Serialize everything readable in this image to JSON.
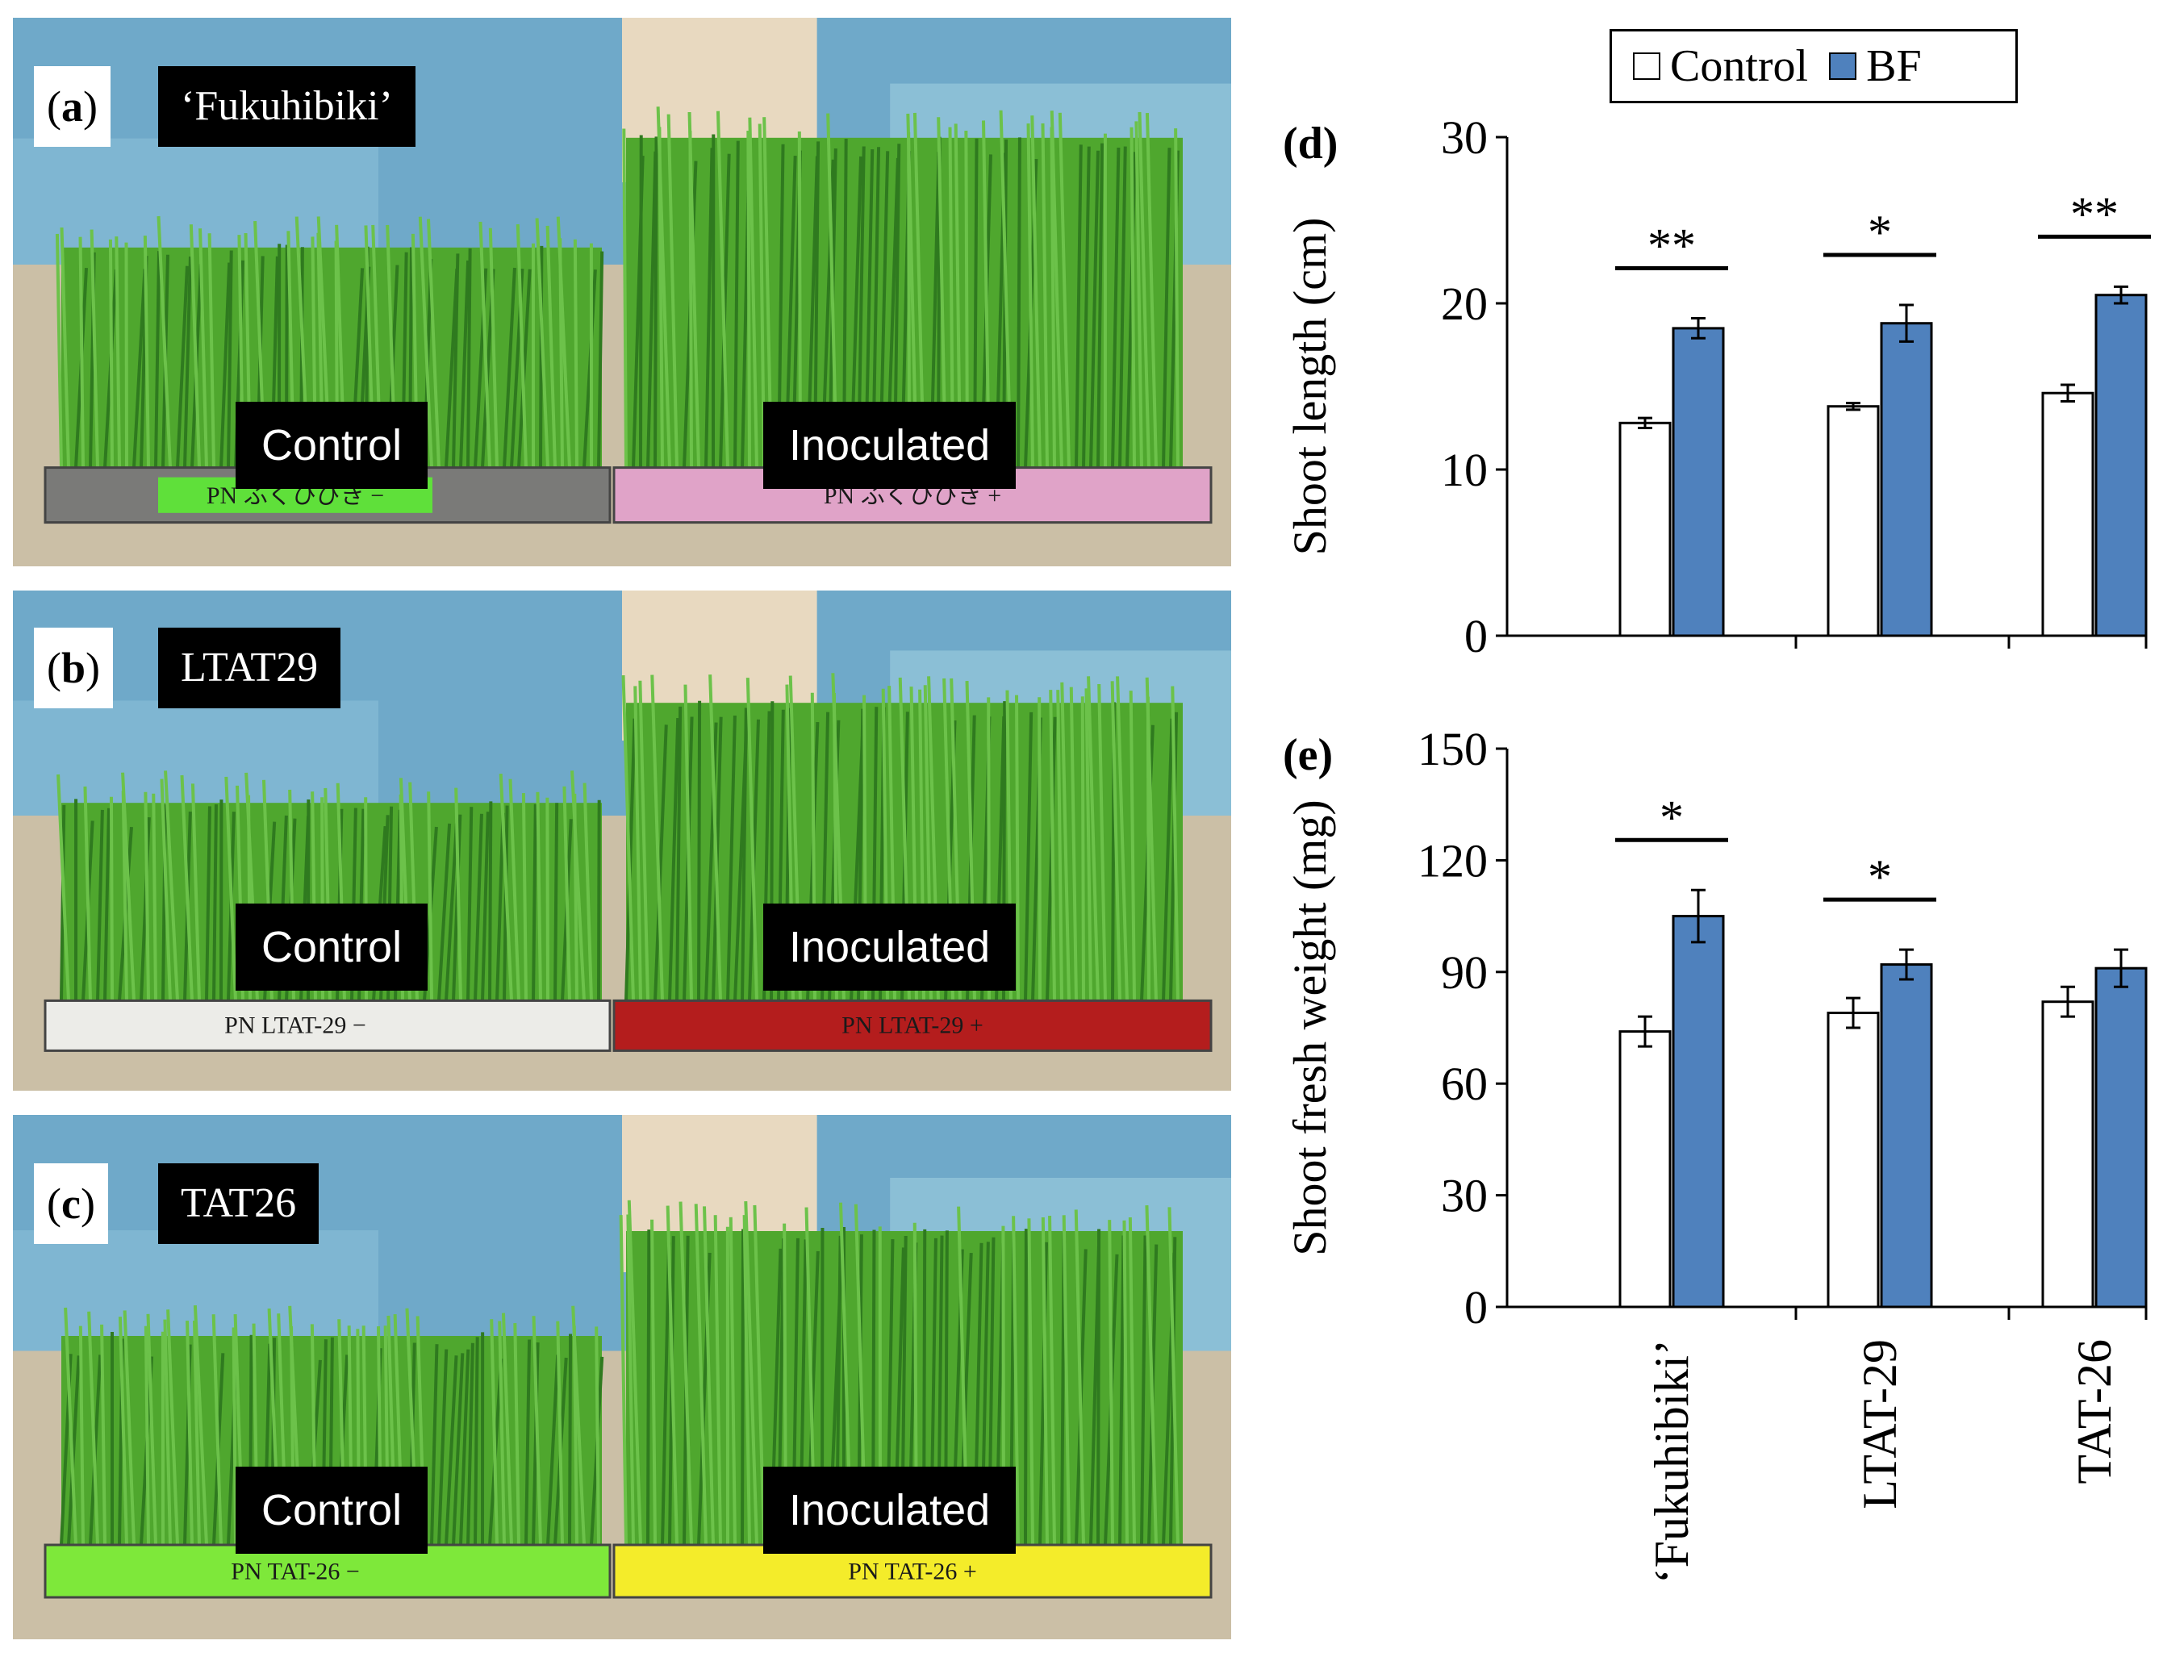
{
  "photo_panels": [
    {
      "letter": "a",
      "title": "‘Fukuhibiki’",
      "left_label": "Control",
      "right_label": "Inoculated",
      "left_tray_text": "PN ふくひびき −",
      "right_tray_text": "PN ふくひびき +",
      "left_tray_color": "#7a7a78",
      "right_tray_color": "#e0a3c8",
      "left_tape_color": "#5fe03a"
    },
    {
      "letter": "b",
      "title": "LTAT29",
      "left_label": "Control",
      "right_label": "Inoculated",
      "left_tray_text": "PN LTAT-29 −",
      "right_tray_text": "PN LTAT-29 +",
      "left_tray_color": "#ecece8",
      "right_tray_color": "#b41d1d",
      "left_tape_color": "#ecece8"
    },
    {
      "letter": "c",
      "title": "TAT26",
      "left_label": "Control",
      "right_label": "Inoculated",
      "left_tray_text": "PN TAT-26 −",
      "right_tray_text": "PN TAT-26 +",
      "left_tray_color": "#7ee83a",
      "right_tray_color": "#f4ec2a",
      "left_tape_color": "#7ee83a"
    }
  ],
  "legend": {
    "control": "Control",
    "bf": "BF"
  },
  "colors": {
    "control": "#ffffff",
    "bf": "#4f81bd",
    "grass": "#4fa72e",
    "grass_dark": "#2f7a1f",
    "soil": "#cbbfa6",
    "sky": "#6fa9c9"
  },
  "chart_data": [
    {
      "panel": "d",
      "type": "bar",
      "ylabel": "Shoot length (cm)",
      "ylim": [
        0,
        30
      ],
      "yticks": [
        "0",
        "10",
        "20",
        "30"
      ],
      "categories": [
        "‘Fukuhibiki’",
        "LTAT-29",
        "TAT-26"
      ],
      "series": [
        {
          "name": "Control",
          "values": [
            12.8,
            13.8,
            14.6
          ],
          "errors": [
            0.3,
            0.2,
            0.5
          ]
        },
        {
          "name": "BF",
          "values": [
            18.5,
            18.8,
            20.5
          ],
          "errors": [
            0.6,
            1.1,
            0.5
          ]
        }
      ],
      "significance": [
        "**",
        "*",
        "**"
      ]
    },
    {
      "panel": "e",
      "type": "bar",
      "ylabel": "Shoot fresh weight (mg)",
      "ylim": [
        0,
        150
      ],
      "yticks": [
        "0",
        "30",
        "60",
        "90",
        "120",
        "150"
      ],
      "categories": [
        "‘Fukuhibiki’",
        "LTAT-29",
        "TAT-26"
      ],
      "series": [
        {
          "name": "Control",
          "values": [
            74,
            79,
            82
          ],
          "errors": [
            4,
            4,
            4
          ]
        },
        {
          "name": "BF",
          "values": [
            105,
            92,
            91
          ],
          "errors": [
            7,
            4,
            5
          ]
        }
      ],
      "significance": [
        "*",
        "*",
        ""
      ]
    }
  ]
}
